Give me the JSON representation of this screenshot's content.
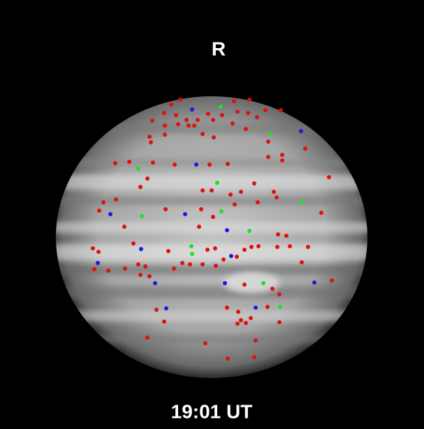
{
  "filter_label": "R",
  "time_label": "19:01 UT"
}
